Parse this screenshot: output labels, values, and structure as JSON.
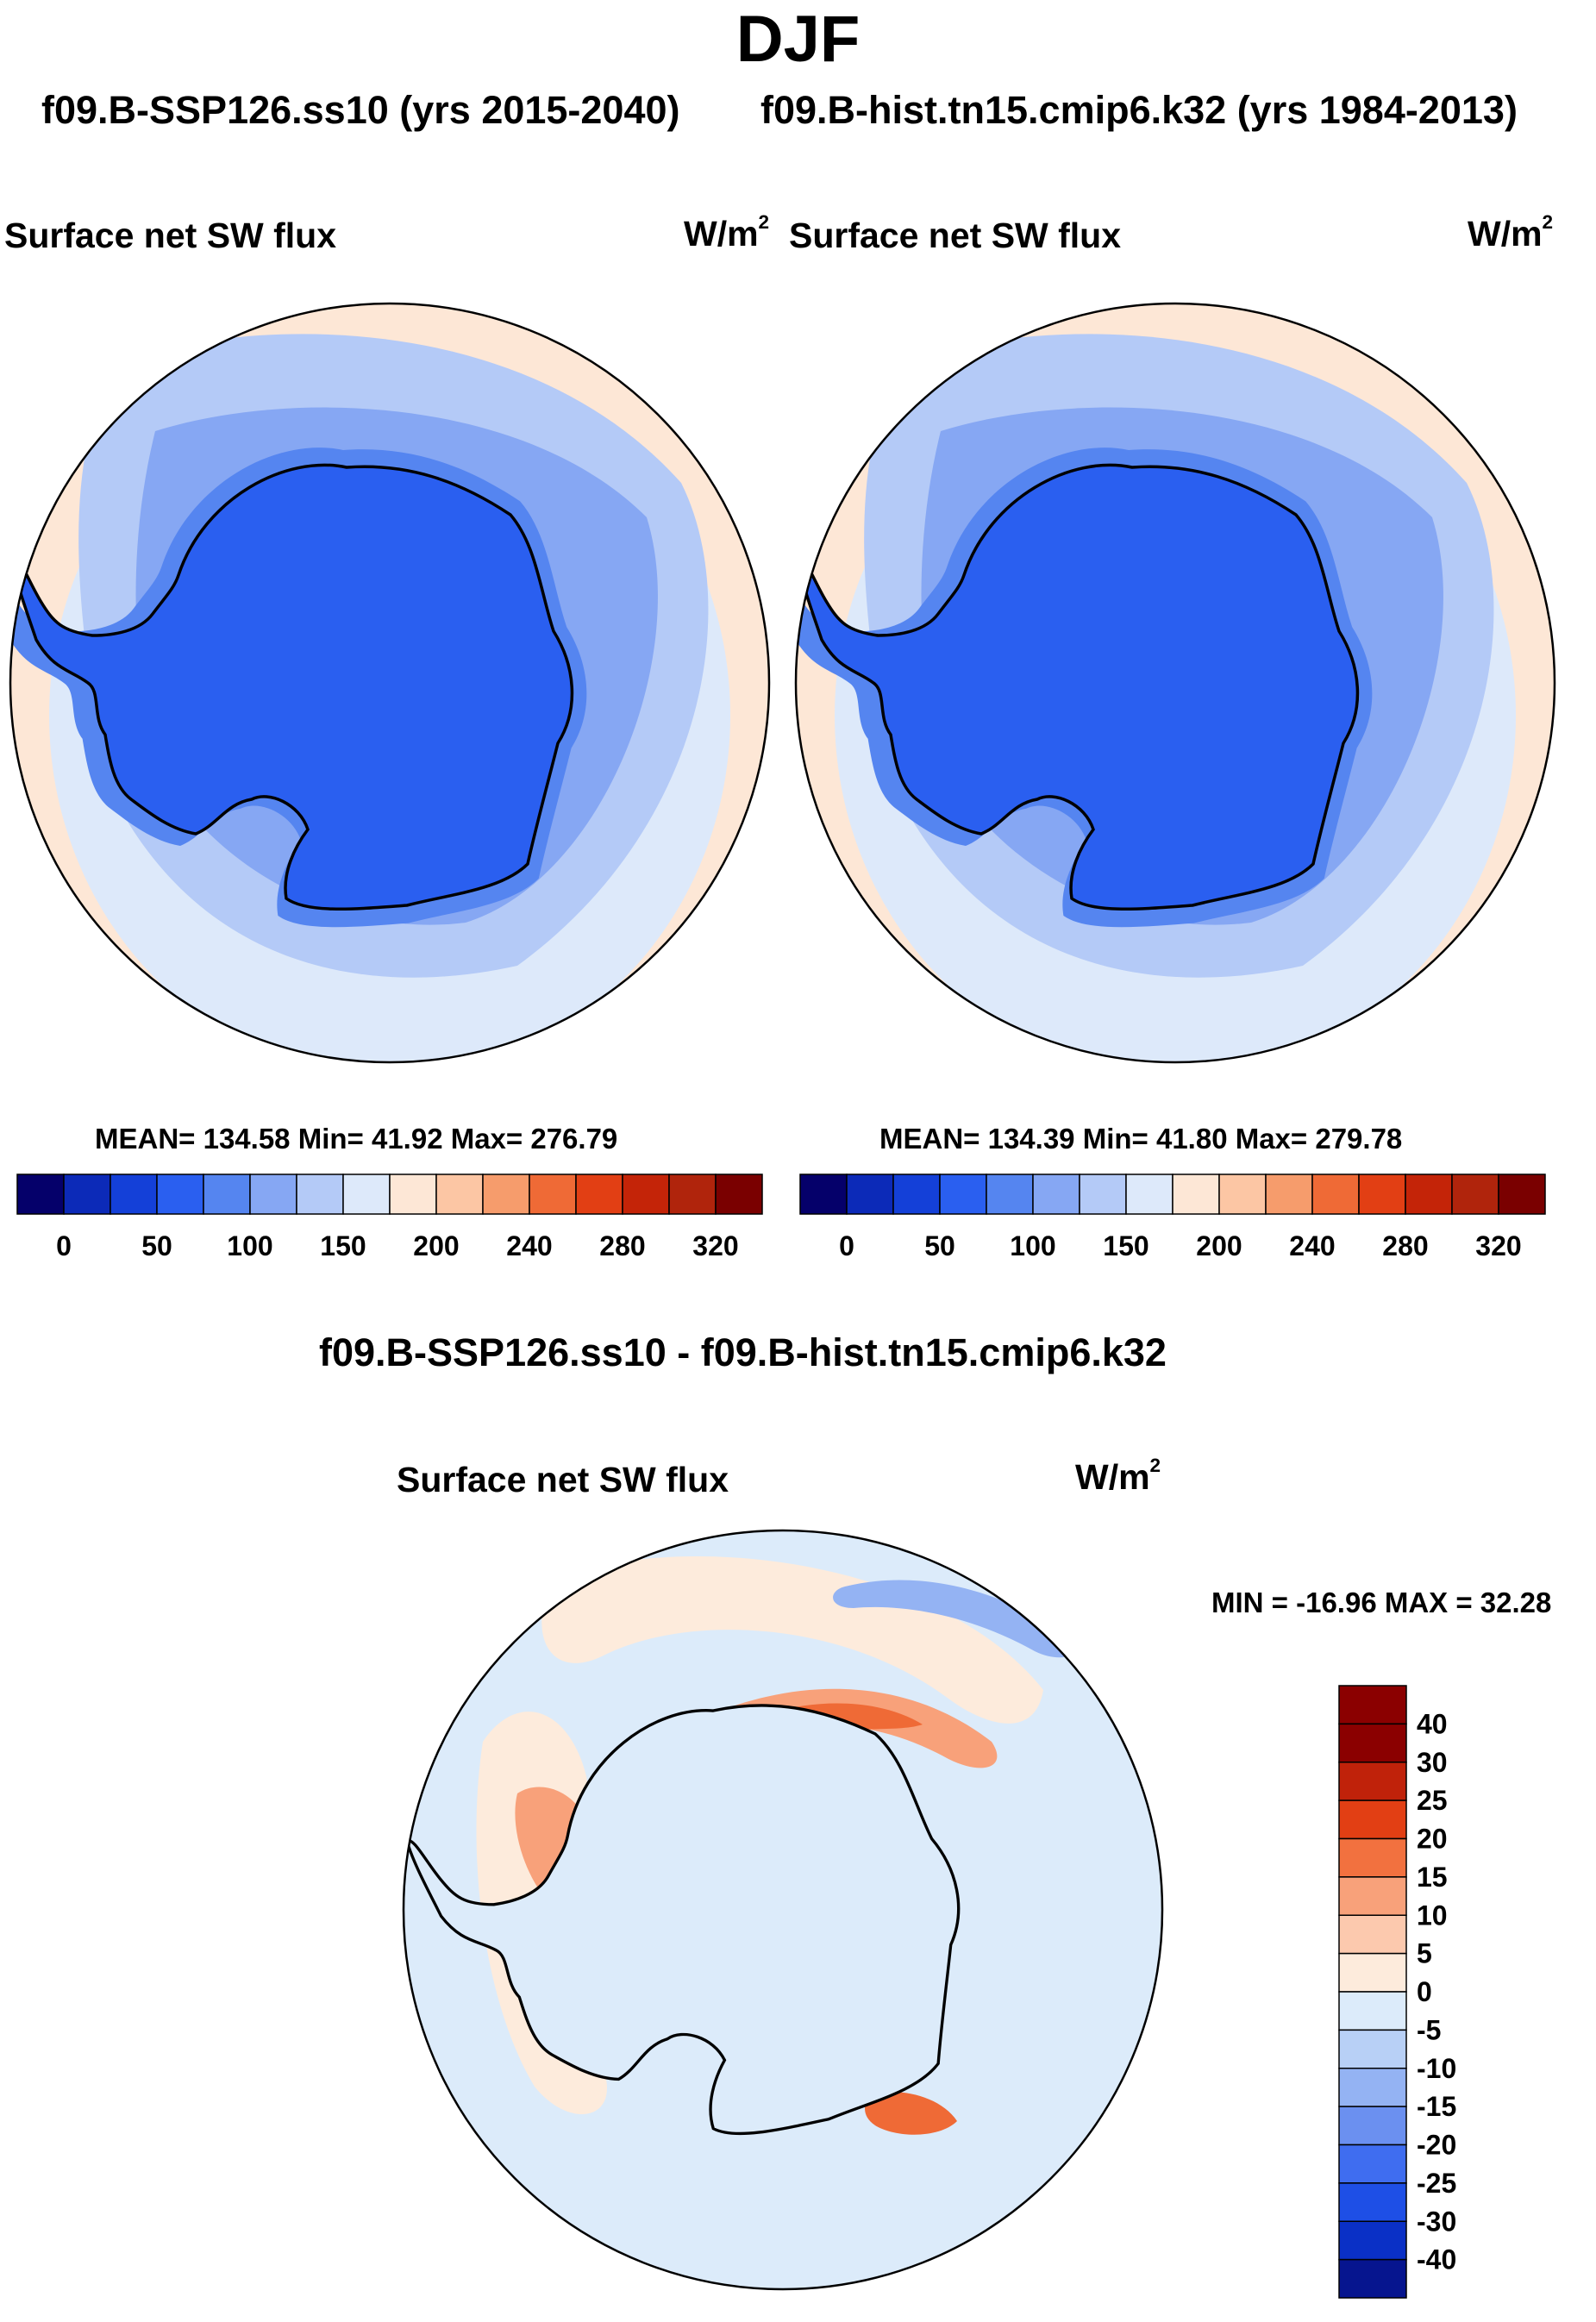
{
  "header": {
    "season": "DJF",
    "case_a": "f09.B-SSP126.ss10 (yrs 2015-2040)",
    "case_b": "f09.B-hist.tn15.cmip6.k32 (yrs 1984-2013)"
  },
  "panel_left": {
    "variable": "Surface net SW flux",
    "units_base": "W/m",
    "units_exp": "2",
    "stats": "MEAN= 134.58  Min=  41.92  Max= 276.79"
  },
  "panel_right": {
    "variable": "Surface net SW flux",
    "units_base": "W/m",
    "units_exp": "2",
    "stats": "MEAN= 134.39  Min=  41.80  Max= 279.78"
  },
  "diff_panel": {
    "title": "f09.B-SSP126.ss10 - f09.B-hist.tn15.cmip6.k32",
    "variable": "Surface net SW flux",
    "units_base": "W/m",
    "units_exp": "2",
    "minmax": "MIN = -16.96 MAX =  32.28"
  },
  "colorbar_abs": {
    "colors": [
      "#05006a",
      "#0c2ab8",
      "#1440d8",
      "#2a5ff0",
      "#5585f0",
      "#86a7f3",
      "#b4caf7",
      "#dde9fa",
      "#fde7d6",
      "#fcc6a4",
      "#f69c6c",
      "#ef6a36",
      "#e23f14",
      "#c42408",
      "#b0240c",
      "#7a0000"
    ],
    "ticks": [
      "0",
      "50",
      "100",
      "150",
      "200",
      "240",
      "280",
      "320"
    ]
  },
  "colorbar_diff": {
    "colors": [
      "#8b0000",
      "#c0220a",
      "#e23f14",
      "#f2713f",
      "#f8a17a",
      "#fcc9ae",
      "#fdebdc",
      "#dcebfa",
      "#b8d0f6",
      "#94b3f3",
      "#6b90f0",
      "#3f6df0",
      "#1e4fe6",
      "#0a30c6",
      "#06158f"
    ],
    "ticks": [
      "40",
      "30",
      "25",
      "20",
      "15",
      "10",
      "5",
      "0",
      "-5",
      "-10",
      "-15",
      "-20",
      "-25",
      "-30",
      "-40"
    ]
  },
  "map_colors": {
    "ocean_far": "#fde7d6",
    "ocean_mid": "#dde9fa",
    "ocean_near": "#b4caf7",
    "ocean_inner": "#86a7f3",
    "ice_edge": "#5585f0",
    "continent": "#2a5ff0",
    "diff_neutral": "#dcebfa",
    "diff_pos": "#fdebdc",
    "diff_pos2": "#f8a17a",
    "diff_pos3": "#ef6a36",
    "diff_neg": "#94b3f3",
    "diff_neg2": "#3f6df0"
  }
}
